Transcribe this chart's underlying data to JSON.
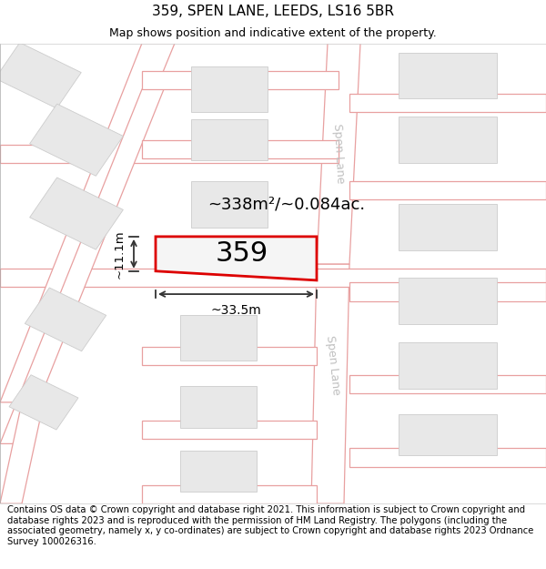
{
  "title": "359, SPEN LANE, LEEDS, LS16 5BR",
  "subtitle": "Map shows position and indicative extent of the property.",
  "footer": "Contains OS data © Crown copyright and database right 2021. This information is subject to Crown copyright and database rights 2023 and is reproduced with the permission of HM Land Registry. The polygons (including the associated geometry, namely x, y co-ordinates) are subject to Crown copyright and database rights 2023 Ordnance Survey 100026316.",
  "area_label": "~338m²/~0.084ac.",
  "width_label": "~33.5m",
  "height_label": "~11.1m",
  "property_number": "359",
  "background_color": "#ffffff",
  "map_bg": "#ffffff",
  "road_color": "#e8a0a0",
  "road_fill": "#ffffff",
  "building_color": "#e8e8e8",
  "building_edge": "#cccccc",
  "property_outline_color": "#dd0000",
  "property_fill": "#f5f5f5",
  "street_label_color": "#c0c0c0",
  "dim_color": "#333333",
  "title_fontsize": 11,
  "subtitle_fontsize": 9,
  "footer_fontsize": 7.2,
  "area_fontsize": 13,
  "number_fontsize": 22,
  "street_fontsize": 9
}
